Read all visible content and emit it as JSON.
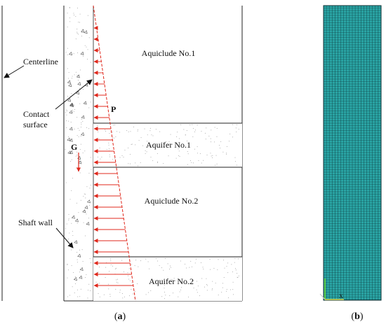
{
  "panel_a": {
    "caption": "(a)",
    "caption_letter": "a",
    "labels": {
      "centerline": "Centerline",
      "contact_line1": "Contact",
      "contact_line2": "surface",
      "shaft_wall": "Shaft wall",
      "pressure": "P",
      "gravity": "G"
    },
    "layers": [
      {
        "name": "Aquiclude No.1",
        "type": "aquiclude"
      },
      {
        "name": "Aquifer No.1",
        "type": "aquifer"
      },
      {
        "name": "Aquiclude No.2",
        "type": "aquiclude"
      },
      {
        "name": "Aquifer No.2",
        "type": "aquifer"
      }
    ]
  },
  "panel_b": {
    "caption": "(b)",
    "caption_letter": "b",
    "axis_label": "X",
    "mesh_color": "#2aa6a6",
    "mesh_line_color": "#0d2f33"
  },
  "colors": {
    "pressure": "#e0281c",
    "line": "#222222",
    "speckle": "#9a9a9a"
  }
}
